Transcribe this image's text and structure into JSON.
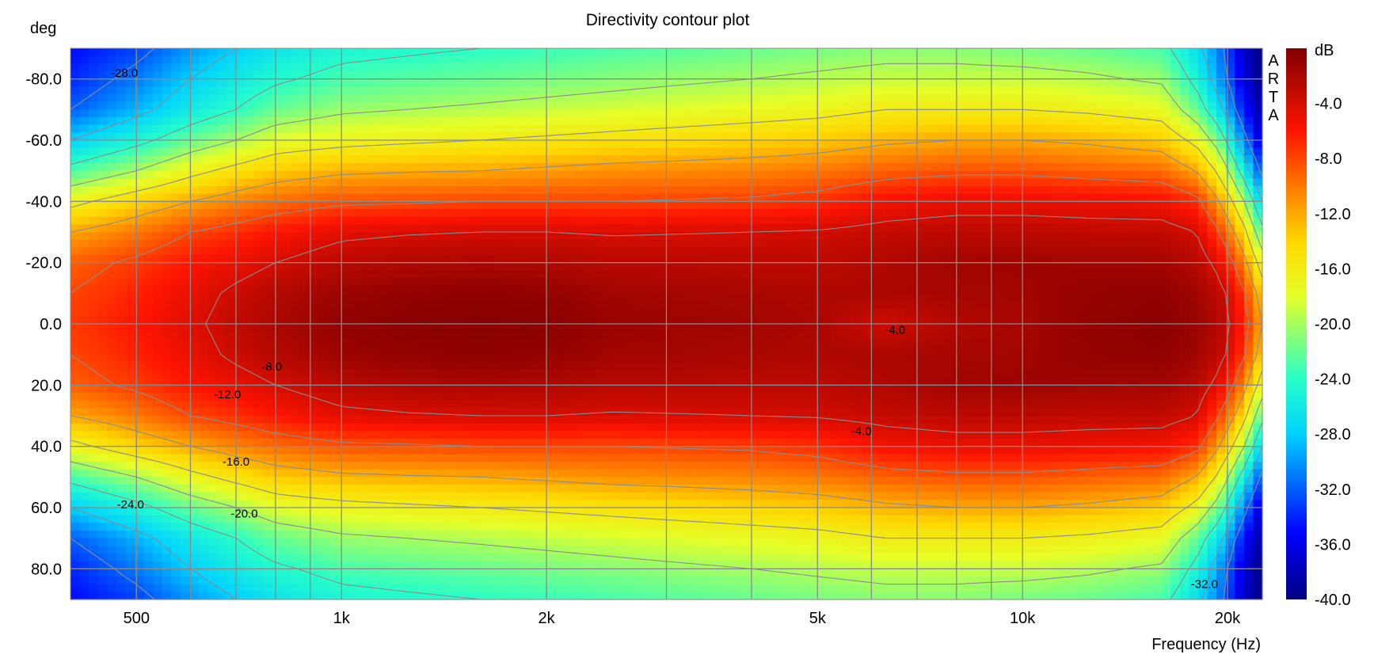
{
  "chart_data": {
    "type": "heatmap",
    "title": "Directivity contour plot",
    "xlabel": "Frequency (Hz)",
    "ylabel": "deg",
    "watermark": "ARTA",
    "x_scale": "log",
    "xlim": [
      400,
      22500
    ],
    "ylim": [
      -90,
      90
    ],
    "x_ticks": [
      {
        "value": 500,
        "label": "500"
      },
      {
        "value": 1000,
        "label": "1k"
      },
      {
        "value": 2000,
        "label": "2k"
      },
      {
        "value": 5000,
        "label": "5k"
      },
      {
        "value": 10000,
        "label": "10k"
      },
      {
        "value": 20000,
        "label": "20k"
      }
    ],
    "x_minor_grid": [
      400,
      600,
      700,
      800,
      900,
      3000,
      4000,
      6000,
      7000,
      8000,
      9000
    ],
    "y_ticks": [
      {
        "value": -80,
        "label": "-80.0"
      },
      {
        "value": -60,
        "label": "-60.0"
      },
      {
        "value": -40,
        "label": "-40.0"
      },
      {
        "value": -20,
        "label": "-20.0"
      },
      {
        "value": 0,
        "label": "0.0"
      },
      {
        "value": 20,
        "label": "20.0"
      },
      {
        "value": 40,
        "label": "40.0"
      },
      {
        "value": 60,
        "label": "60.0"
      },
      {
        "value": 80,
        "label": "80.0"
      }
    ],
    "colorbar": {
      "unit": "dB",
      "range": [
        -40,
        0
      ],
      "ticks": [
        {
          "value": -4,
          "label": "-4.0"
        },
        {
          "value": -8,
          "label": "-8.0"
        },
        {
          "value": -12,
          "label": "-12.0"
        },
        {
          "value": -16,
          "label": "-16.0"
        },
        {
          "value": -20,
          "label": "-20.0"
        },
        {
          "value": -24,
          "label": "-24.0"
        },
        {
          "value": -28,
          "label": "-28.0"
        },
        {
          "value": -32,
          "label": "-32.0"
        },
        {
          "value": -36,
          "label": "-36.0"
        },
        {
          "value": -40,
          "label": "-40.0"
        }
      ]
    },
    "contour_levels": [
      -4,
      -8,
      -12,
      -16,
      -20,
      -24,
      -28,
      -32
    ],
    "angle_samples": [
      0,
      10,
      20,
      30,
      40,
      50,
      60,
      70,
      80,
      90
    ],
    "freq_samples": [
      400,
      500,
      600,
      700,
      800,
      1000,
      1250,
      1600,
      2000,
      2500,
      3150,
      4000,
      5000,
      6300,
      8000,
      10000,
      12500,
      16000,
      18000,
      19500,
      21000,
      22500
    ],
    "spl_db": [
      [
        -7.5,
        -8,
        -9,
        -12,
        -17,
        -23,
        -28,
        -32,
        -34,
        -35
      ],
      [
        -6,
        -6.5,
        -7.5,
        -10,
        -14,
        -20,
        -25,
        -29,
        -31,
        -33
      ],
      [
        -4.5,
        -5,
        -6,
        -8,
        -12,
        -17,
        -22,
        -26,
        -28,
        -30
      ],
      [
        -3,
        -3.5,
        -5,
        -7,
        -10.5,
        -15,
        -20,
        -24,
        -26,
        -28
      ],
      [
        -2,
        -2.5,
        -4,
        -6,
        -9.5,
        -13.5,
        -18,
        -22,
        -24.5,
        -26.5
      ],
      [
        -0.8,
        -1.3,
        -2.6,
        -4.6,
        -8.5,
        -12.5,
        -17,
        -20.5,
        -23,
        -25
      ],
      [
        -0.5,
        -0.9,
        -2.2,
        -4.2,
        -8.3,
        -12.2,
        -16.5,
        -20,
        -22.5,
        -24.5
      ],
      [
        -0.3,
        -0.7,
        -2,
        -4,
        -8,
        -12,
        -16,
        -19.5,
        -22,
        -24
      ],
      [
        -0.5,
        -0.9,
        -2.2,
        -4,
        -8,
        -11.5,
        -15.5,
        -19,
        -21.5,
        -23.5
      ],
      [
        -1.2,
        -1.6,
        -2.6,
        -4.2,
        -8,
        -11,
        -15,
        -18.5,
        -21,
        -23
      ],
      [
        -1.4,
        -1.7,
        -2.6,
        -4.1,
        -7.8,
        -10.8,
        -14.5,
        -18,
        -20.5,
        -22.5
      ],
      [
        -1.6,
        -1.9,
        -2.8,
        -4,
        -7.6,
        -10.5,
        -14,
        -17.5,
        -20,
        -22
      ],
      [
        -2,
        -2.2,
        -2.8,
        -3.8,
        -7,
        -10,
        -13.5,
        -17,
        -19.5,
        -21.5
      ],
      [
        -3.8,
        -2,
        -2.3,
        -3.2,
        -5.5,
        -9,
        -12.5,
        -16,
        -19,
        -21
      ],
      [
        -2.3,
        -1.8,
        -1.5,
        -2.8,
        -5,
        -8.5,
        -12,
        -16,
        -19,
        -21
      ],
      [
        -1.8,
        -1.6,
        -1.4,
        -2.8,
        -5,
        -8.5,
        -12,
        -16,
        -19,
        -21.5
      ],
      [
        -0.9,
        -1,
        -1.5,
        -3,
        -5.2,
        -9,
        -12.5,
        -16.5,
        -19.5,
        -22
      ],
      [
        -0.5,
        -0.8,
        -1.6,
        -3,
        -5.5,
        -9.5,
        -13.5,
        -17.5,
        -20.5,
        -23
      ],
      [
        -1.2,
        -1.5,
        -2.5,
        -4,
        -7,
        -12,
        -17,
        -22,
        -25,
        -27
      ],
      [
        -2.5,
        -3,
        -5,
        -8,
        -12,
        -17,
        -22,
        -27,
        -30,
        -31
      ],
      [
        -6,
        -7,
        -10,
        -14,
        -19,
        -25,
        -30,
        -34,
        -36,
        -37
      ],
      [
        -12,
        -14,
        -18,
        -23,
        -28,
        -33,
        -37,
        -39,
        -40,
        -40
      ]
    ],
    "contour_labels": [
      {
        "text": "-28.0",
        "x": 480,
        "y": -82
      },
      {
        "text": "-24.0",
        "x": 490,
        "y": 59
      },
      {
        "text": "-20.0",
        "x": 720,
        "y": 62
      },
      {
        "text": "-16.0",
        "x": 700,
        "y": 45
      },
      {
        "text": "-12.0",
        "x": 680,
        "y": 23
      },
      {
        "text": "-8.0",
        "x": 790,
        "y": 14
      },
      {
        "text": "-4.0",
        "x": 6500,
        "y": 2
      },
      {
        "text": "-4.0",
        "x": 5800,
        "y": 35
      },
      {
        "text": "-32.0",
        "x": 18500,
        "y": 85
      }
    ]
  }
}
